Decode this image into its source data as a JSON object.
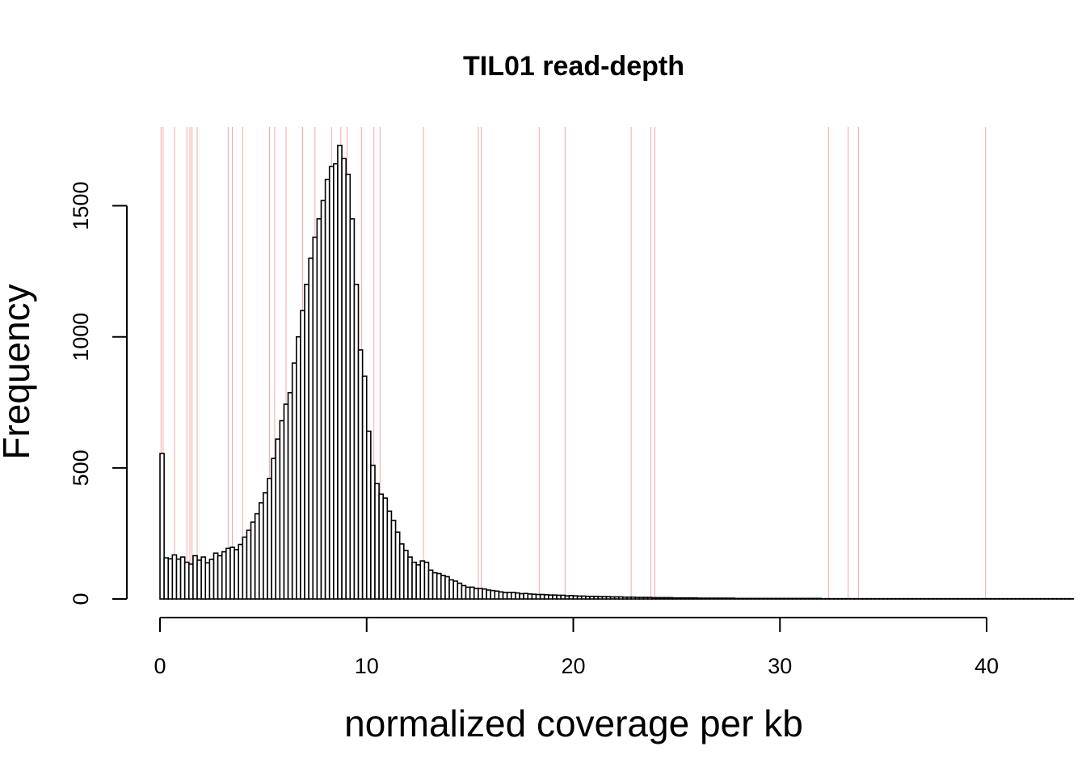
{
  "chart_data": {
    "type": "bar",
    "subtype": "histogram",
    "title": "TIL01 read-depth",
    "xlabel": "normalized coverage per kb",
    "ylabel": "Frequency",
    "xlim": [
      0,
      41.6
    ],
    "ylim": [
      0,
      1800
    ],
    "x_ticks": [
      0,
      10,
      20,
      30,
      40
    ],
    "y_ticks": [
      0,
      500,
      1000,
      1500
    ],
    "bin_width": 0.2,
    "bin_start": 0,
    "values": [
      555,
      157,
      153,
      168,
      152,
      160,
      140,
      133,
      165,
      148,
      160,
      138,
      151,
      175,
      165,
      180,
      193,
      197,
      188,
      208,
      236,
      262,
      293,
      325,
      367,
      405,
      460,
      536,
      610,
      680,
      743,
      787,
      900,
      1000,
      1100,
      1200,
      1300,
      1380,
      1450,
      1520,
      1600,
      1650,
      1660,
      1730,
      1680,
      1620,
      1450,
      1200,
      950,
      850,
      640,
      510,
      440,
      400,
      385,
      335,
      300,
      255,
      210,
      185,
      160,
      140,
      130,
      145,
      140,
      110,
      100,
      97,
      90,
      85,
      73,
      68,
      60,
      51,
      45,
      45,
      40,
      40,
      38,
      34,
      32,
      30,
      27,
      25,
      25,
      25,
      23,
      20,
      21,
      19,
      18,
      17,
      17,
      16,
      15,
      15,
      14,
      14,
      12,
      13,
      12,
      11,
      11,
      10,
      10,
      10,
      9,
      9,
      9,
      8,
      8,
      8,
      7,
      7,
      7,
      6,
      6,
      6,
      6,
      5,
      5,
      5,
      5,
      5,
      4,
      4,
      4,
      4,
      4,
      4,
      3,
      3,
      3,
      3,
      3,
      3,
      3,
      3,
      3,
      2,
      2,
      2,
      2,
      2,
      2,
      2,
      2,
      2,
      2,
      2,
      2,
      2,
      2,
      2,
      2,
      2,
      2,
      2,
      2,
      2,
      1,
      1,
      1,
      1,
      1,
      1,
      1,
      1,
      1,
      1,
      1,
      1,
      1,
      1,
      1,
      1,
      1,
      1,
      1,
      1,
      1,
      1,
      1,
      1,
      1,
      1,
      1,
      1,
      1,
      1,
      1,
      1,
      1,
      1,
      1,
      1,
      1,
      1,
      1,
      1,
      1,
      1,
      1,
      1,
      1,
      1,
      1,
      1,
      1,
      1,
      1,
      1,
      1,
      1,
      1,
      1,
      1,
      1,
      1,
      1,
      1
    ],
    "reference_lines_x": [
      0.05,
      0.15,
      0.7,
      1.3,
      1.45,
      1.55,
      1.8,
      3.3,
      3.5,
      4.0,
      5.3,
      5.55,
      6.1,
      6.9,
      7.5,
      8.3,
      8.75,
      9.05,
      9.75,
      10.35,
      10.65,
      12.75,
      15.4,
      15.55,
      18.35,
      19.6,
      22.8,
      23.75,
      23.95,
      32.35,
      33.3,
      33.8,
      39.95
    ],
    "reference_line_color": "#f4a8a8",
    "bar_fill": "#ffffff",
    "bar_stroke": "#000000",
    "grid": false,
    "legend": "none"
  }
}
